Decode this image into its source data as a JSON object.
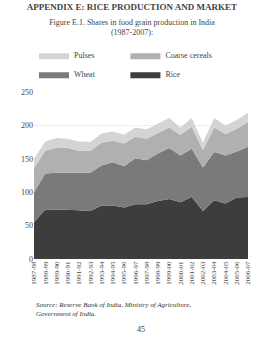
{
  "chart_data": {
    "type": "area",
    "stacked": true,
    "title": "APPENDIX E: RICE PRODUCTION AND MARKET",
    "subtitle": "Figure E.1. Shares in food grain production in India (1987-2007):",
    "annotations": [
      "Source: Reserve Bank of India, Ministry of Agriculture, Government of India.",
      "45"
    ],
    "categories": [
      "1987-88",
      "1988-89",
      "1989-90",
      "1990-91",
      "1991-92",
      "1992-93",
      "1993-94",
      "1994-95",
      "1995-96",
      "1996-97",
      "1997-98",
      "1998-99",
      "1999-00",
      "2000-01",
      "2001-02",
      "2002-03",
      "2003-04",
      "2004-05",
      "2005-06",
      "2006-07"
    ],
    "series": [
      {
        "name": "Rice",
        "color": "#3d3d3d",
        "values": [
          55,
          74,
          74,
          74,
          73,
          72,
          80,
          80,
          77,
          82,
          82,
          87,
          90,
          85,
          93,
          72,
          88,
          83,
          92,
          93
        ]
      },
      {
        "name": "Wheat",
        "color": "#7a7a7a",
        "values": [
          45,
          54,
          55,
          55,
          55,
          57,
          60,
          65,
          62,
          69,
          66,
          71,
          76,
          70,
          72,
          65,
          72,
          72,
          69,
          75
        ]
      },
      {
        "name": "Coarse cereals",
        "color": "#b0b0b0",
        "values": [
          36,
          34,
          38,
          37,
          34,
          33,
          34,
          32,
          34,
          32,
          32,
          31,
          31,
          31,
          33,
          26,
          37,
          32,
          34,
          37
        ]
      },
      {
        "name": "Pulses",
        "color": "#d4d4d4",
        "values": [
          14,
          14,
          14,
          14,
          14,
          13,
          14,
          14,
          13,
          14,
          14,
          14,
          14,
          11,
          13,
          11,
          14,
          13,
          13,
          14
        ]
      }
    ],
    "ylim": [
      0,
      250
    ],
    "yticks": [
      0,
      50,
      100,
      150,
      200,
      250
    ],
    "grid": true,
    "legend": "top"
  }
}
